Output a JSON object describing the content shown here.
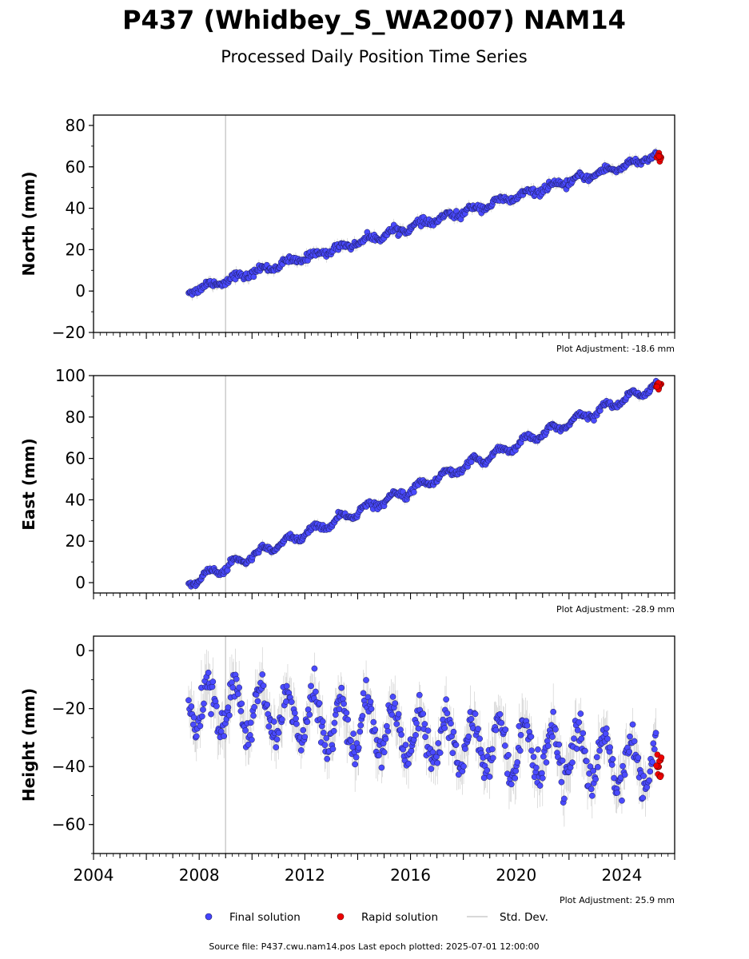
{
  "title": "P437 (Whidbey_S_WA2007) NAM14",
  "subtitle": "Processed Daily Position Time Series",
  "footer": "Source file: P437.cwu.nam14.pos  Last epoch plotted: 2025-07-01 12:00:00",
  "legend": {
    "items": [
      {
        "label": "Final solution",
        "color": "#4444ff",
        "kind": "dot"
      },
      {
        "label": "Rapid solution",
        "color": "#ee0000",
        "kind": "dot"
      },
      {
        "label": "Std. Dev.",
        "color": "#cccccc",
        "kind": "line"
      }
    ]
  },
  "colors": {
    "final": "#4a4aff",
    "final_edge": "#1a1a55",
    "rapid": "#ee0000",
    "stddev": "#888888",
    "event_line": "#cccccc"
  },
  "chart_data": [
    {
      "type": "scatter",
      "ylabel": "North (mm)",
      "adjustment": "Plot Adjustment: -18.6 mm",
      "xlim": [
        2004,
        2026
      ],
      "ylim": [
        -20,
        85
      ],
      "yticks": [
        -20,
        0,
        20,
        40,
        60,
        80
      ],
      "xticks": [
        2004,
        2008,
        2012,
        2016,
        2020,
        2024
      ],
      "show_xticklabels": false,
      "event_lines": [
        2009.0
      ],
      "series": [
        {
          "values_by": "trend",
          "start": 2007.6,
          "end": 2025.3,
          "y0": 0,
          "y1": 65,
          "seasonal_amp": 1.2,
          "noise": 1.4
        }
      ],
      "rapid": {
        "start": 2025.3,
        "end": 2025.5,
        "y": 65,
        "spread": 1
      }
    },
    {
      "type": "scatter",
      "ylabel": "East (mm)",
      "adjustment": "Plot Adjustment: -28.9 mm",
      "xlim": [
        2004,
        2026
      ],
      "ylim": [
        -5,
        100
      ],
      "yticks": [
        0,
        20,
        40,
        60,
        80,
        100
      ],
      "xticks": [
        2004,
        2008,
        2012,
        2016,
        2020,
        2024
      ],
      "show_xticklabels": false,
      "event_lines": [
        2009.0
      ],
      "series": [
        {
          "values_by": "trend",
          "start": 2007.6,
          "end": 2025.3,
          "y0": 0,
          "y1": 95,
          "seasonal_amp": 2.0,
          "noise": 1.2
        }
      ],
      "rapid": {
        "start": 2025.3,
        "end": 2025.5,
        "y": 95,
        "spread": 1
      }
    },
    {
      "type": "scatter",
      "ylabel": "Height (mm)",
      "adjustment": "Plot Adjustment: 25.9 mm",
      "xlim": [
        2004,
        2026
      ],
      "ylim": [
        -70,
        5
      ],
      "yticks": [
        -60,
        -40,
        -20,
        0
      ],
      "xticks": [
        2004,
        2008,
        2012,
        2016,
        2020,
        2024
      ],
      "xticklabels": [
        "2004",
        "2008",
        "2012",
        "2016",
        "2020",
        "2024"
      ],
      "show_xticklabels": true,
      "event_lines": [
        2009.0
      ],
      "series": [
        {
          "values_by": "trend",
          "start": 2007.6,
          "end": 2025.3,
          "y0": -18,
          "y1": -40,
          "seasonal_amp": 9,
          "noise": 4.5
        }
      ],
      "rapid": {
        "start": 2025.3,
        "end": 2025.5,
        "y": -40,
        "spread": 5
      }
    }
  ]
}
